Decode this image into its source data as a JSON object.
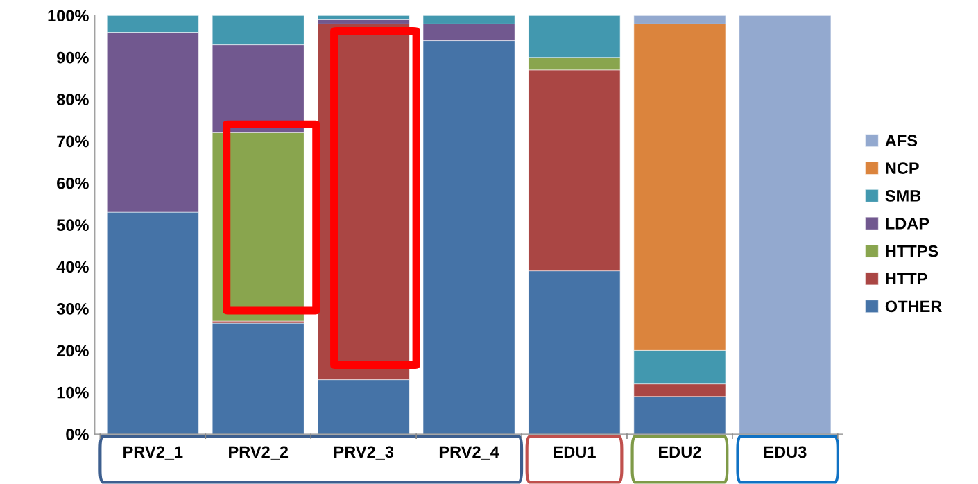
{
  "chart_data": {
    "type": "bar",
    "stacked": true,
    "categories": [
      "PRV2_1",
      "PRV2_2",
      "PRV2_3",
      "PRV2_4",
      "EDU1",
      "EDU2",
      "EDU3"
    ],
    "series": [
      {
        "name": "OTHER",
        "color": "#4573a7",
        "values": [
          53,
          26.5,
          13,
          94,
          39,
          9,
          0
        ]
      },
      {
        "name": "HTTP",
        "color": "#aa4644",
        "values": [
          0,
          0.5,
          85,
          0,
          48,
          3,
          0
        ]
      },
      {
        "name": "HTTPS",
        "color": "#89a54e",
        "values": [
          0,
          45,
          0,
          0,
          3,
          0,
          0
        ]
      },
      {
        "name": "LDAP",
        "color": "#71588f",
        "values": [
          43,
          21,
          1,
          4,
          0,
          0,
          0
        ]
      },
      {
        "name": "SMB",
        "color": "#4298af",
        "values": [
          4,
          7,
          1,
          2,
          10,
          8,
          0
        ]
      },
      {
        "name": "NCP",
        "color": "#db843d",
        "values": [
          0,
          0,
          0,
          0,
          0,
          78,
          0
        ]
      },
      {
        "name": "AFS",
        "color": "#93a9cf",
        "values": [
          0,
          0,
          0,
          0,
          0,
          2,
          100
        ]
      }
    ],
    "ylim": [
      0,
      100
    ],
    "yticks": [
      {
        "value": 0,
        "label": "0%"
      },
      {
        "value": 10,
        "label": "10%"
      },
      {
        "value": 20,
        "label": "20%"
      },
      {
        "value": 30,
        "label": "30%"
      },
      {
        "value": 40,
        "label": "40%"
      },
      {
        "value": 50,
        "label": "50%"
      },
      {
        "value": 60,
        "label": "60%"
      },
      {
        "value": 70,
        "label": "70%"
      },
      {
        "value": 80,
        "label": "80%"
      },
      {
        "value": 90,
        "label": "90%"
      },
      {
        "value": 100,
        "label": "100%"
      }
    ],
    "grid": false,
    "legend": "right"
  }
}
